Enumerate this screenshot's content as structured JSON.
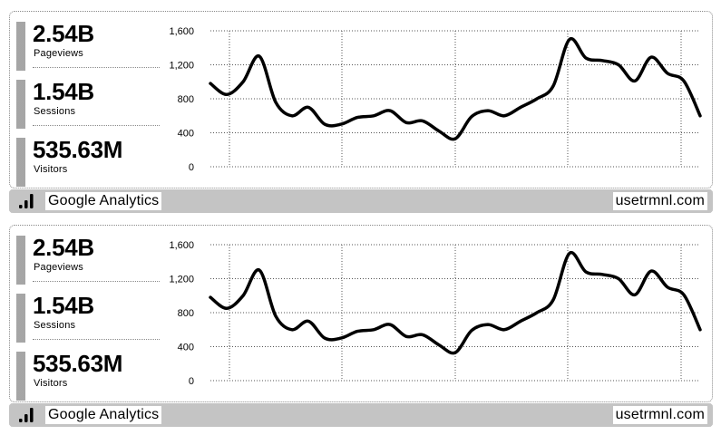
{
  "panels": [
    {
      "stats": [
        {
          "value": "2.54B",
          "label": "Pageviews"
        },
        {
          "value": "1.54B",
          "label": "Sessions"
        },
        {
          "value": "535.63M",
          "label": "Visitors"
        }
      ],
      "title_bar": {
        "plugin_name": "Google Analytics",
        "instance": "usetrmnl.com",
        "icon": "bar-chart-icon"
      }
    },
    {
      "stats": [
        {
          "value": "2.54B",
          "label": "Pageviews"
        },
        {
          "value": "1.54B",
          "label": "Sessions"
        },
        {
          "value": "535.63M",
          "label": "Visitors"
        }
      ],
      "title_bar": {
        "plugin_name": "Google Analytics",
        "instance": "usetrmnl.com",
        "icon": "bar-chart-icon"
      }
    }
  ],
  "chart_data": [
    {
      "type": "line",
      "y_ticks": [
        "0",
        "400",
        "800",
        "1,200",
        "1,600"
      ],
      "ylim": [
        0,
        1600
      ],
      "grid": true,
      "series": [
        {
          "values": [
            980,
            850,
            1000,
            1300,
            760,
            600,
            700,
            500,
            500,
            580,
            600,
            660,
            520,
            540,
            420,
            330,
            590,
            660,
            600,
            700,
            800,
            950,
            1500,
            1280,
            1250,
            1200,
            1010,
            1290,
            1100,
            1010,
            600
          ]
        }
      ]
    },
    {
      "type": "line",
      "y_ticks": [
        "0",
        "400",
        "800",
        "1,200",
        "1,600"
      ],
      "ylim": [
        0,
        1600
      ],
      "grid": true,
      "series": [
        {
          "values": [
            980,
            850,
            1000,
            1300,
            760,
            600,
            700,
            500,
            500,
            580,
            600,
            660,
            520,
            540,
            420,
            330,
            590,
            660,
            600,
            700,
            800,
            950,
            1500,
            1280,
            1250,
            1200,
            1010,
            1290,
            1100,
            1010,
            600
          ]
        }
      ]
    }
  ]
}
